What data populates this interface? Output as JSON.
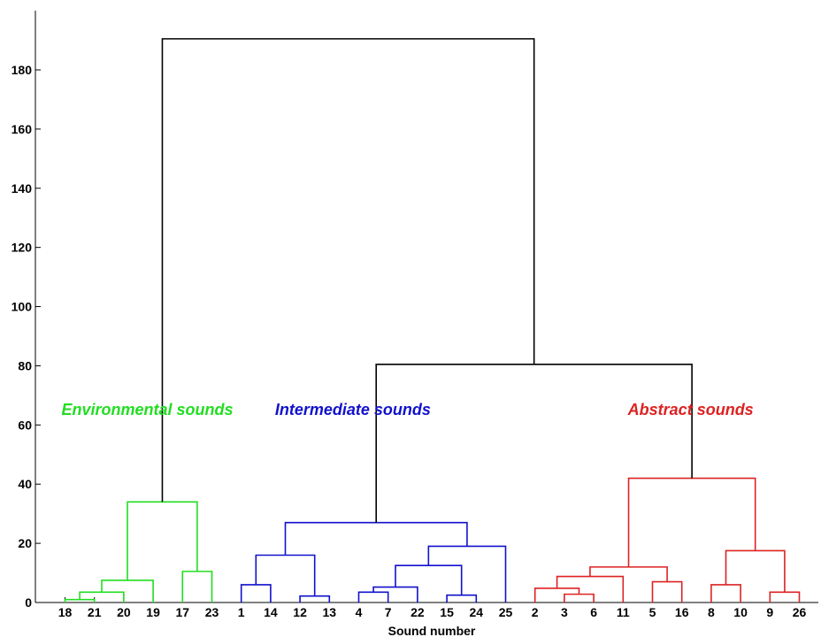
{
  "chart_data": {
    "type": "dendrogram",
    "xlabel": "Sound number",
    "ylabel": "",
    "ylim": [
      0,
      200
    ],
    "yticks": [
      0,
      20,
      40,
      60,
      80,
      100,
      120,
      140,
      160,
      180
    ],
    "leaf_order": [
      "18",
      "21",
      "20",
      "19",
      "17",
      "23",
      "1",
      "14",
      "12",
      "13",
      "4",
      "7",
      "22",
      "15",
      "24",
      "25",
      "2",
      "3",
      "6",
      "11",
      "5",
      "16",
      "8",
      "10",
      "9",
      "26"
    ],
    "colors": {
      "environmental": "#22dd22",
      "intermediate": "#1111cc",
      "abstract": "#dd2222",
      "root": "#000000"
    },
    "cluster_labels": [
      {
        "text": "Environmental sounds",
        "color": "#22dd22",
        "center_leaf": 2.5
      },
      {
        "text": "Intermediate sounds",
        "color": "#1111cc",
        "center_leaf": 9.5
      },
      {
        "text": "Abstract sounds",
        "color": "#dd2222",
        "center_leaf": 21.0
      }
    ],
    "merges": [
      {
        "id": "n1",
        "left": "L0",
        "right": "L1",
        "height": 1,
        "color": "#22dd22"
      },
      {
        "id": "n2",
        "left": "n1",
        "right": "L2",
        "height": 3.5,
        "color": "#22dd22"
      },
      {
        "id": "n3",
        "left": "n2",
        "right": "L3",
        "height": 7.5,
        "color": "#22dd22"
      },
      {
        "id": "n4",
        "left": "L4",
        "right": "L5",
        "height": 10.5,
        "color": "#22dd22"
      },
      {
        "id": "n5",
        "left": "n3",
        "right": "n4",
        "height": 34,
        "color": "#22dd22"
      },
      {
        "id": "n6",
        "left": "L6",
        "right": "L7",
        "height": 6,
        "color": "#1111cc"
      },
      {
        "id": "n7",
        "left": "L8",
        "right": "L9",
        "height": 2.2,
        "color": "#1111cc"
      },
      {
        "id": "n8",
        "left": "n6",
        "right": "n7",
        "height": 16,
        "color": "#1111cc"
      },
      {
        "id": "n9",
        "left": "L10",
        "right": "L11",
        "height": 3.5,
        "color": "#1111cc"
      },
      {
        "id": "n10",
        "left": "n9",
        "right": "L12",
        "height": 5.2,
        "color": "#1111cc"
      },
      {
        "id": "n11",
        "left": "L13",
        "right": "L14",
        "height": 2.5,
        "color": "#1111cc"
      },
      {
        "id": "n12",
        "left": "n10",
        "right": "n11",
        "height": 12.5,
        "color": "#1111cc"
      },
      {
        "id": "n13",
        "left": "n12",
        "right": "L15",
        "height": 19,
        "color": "#1111cc"
      },
      {
        "id": "n14",
        "left": "n8",
        "right": "n13",
        "height": 27,
        "color": "#1111cc"
      },
      {
        "id": "n15",
        "left": "L17",
        "right": "L18",
        "height": 2.8,
        "color": "#dd2222"
      },
      {
        "id": "n16",
        "left": "L16",
        "right": "n15",
        "height": 4.8,
        "color": "#dd2222"
      },
      {
        "id": "n17",
        "left": "n16",
        "right": "L19",
        "height": 8.8,
        "color": "#dd2222"
      },
      {
        "id": "n18",
        "left": "L20",
        "right": "L21",
        "height": 7,
        "color": "#dd2222"
      },
      {
        "id": "n19",
        "left": "n17",
        "right": "n18",
        "height": 12,
        "color": "#dd2222"
      },
      {
        "id": "n20",
        "left": "L22",
        "right": "L23",
        "height": 6,
        "color": "#dd2222"
      },
      {
        "id": "n21",
        "left": "L24",
        "right": "L25",
        "height": 3.5,
        "color": "#dd2222"
      },
      {
        "id": "n22",
        "left": "n20",
        "right": "n21",
        "height": 17.5,
        "color": "#dd2222"
      },
      {
        "id": "n23",
        "left": "n19",
        "right": "n22",
        "height": 42,
        "color": "#dd2222"
      },
      {
        "id": "n24",
        "left": "n14",
        "right": "n23",
        "height": 80.5,
        "color": "#000000"
      },
      {
        "id": "n25",
        "left": "n5",
        "right": "n24",
        "height": 190.5,
        "color": "#000000"
      }
    ]
  }
}
